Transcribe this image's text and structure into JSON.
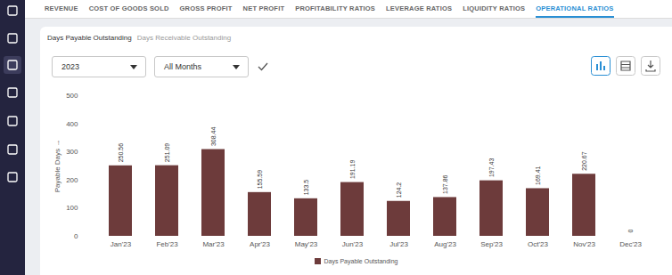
{
  "page": {
    "tabs": [
      {
        "label": "REVENUE"
      },
      {
        "label": "COST OF GOODS SOLD"
      },
      {
        "label": "GROSS PROFIT"
      },
      {
        "label": "NET PROFIT"
      },
      {
        "label": "PROFITABILITY RATIOS"
      },
      {
        "label": "LEVERAGE RATIOS"
      },
      {
        "label": "LIQUIDITY RATIOS"
      },
      {
        "label": "OPERATIONAL RATIOS",
        "active": true
      }
    ],
    "subtabs": [
      {
        "label": "Days Payable Outstanding",
        "active": true
      },
      {
        "label": "Days Receivable Outstanding"
      }
    ],
    "filters": [
      "2023",
      "All Months"
    ]
  },
  "chart_data": {
    "type": "bar",
    "categories": [
      "Jan'23",
      "Feb'23",
      "Mar'23",
      "Apr'23",
      "May'23",
      "Jun'23",
      "Jul'23",
      "Aug'23",
      "Sep'23",
      "Oct'23",
      "Nov'23",
      "Dec'23"
    ],
    "series": [
      {
        "name": "Days Payable Outstanding",
        "color": "#6d3b3b",
        "values": [
          250.56,
          251.09,
          308.44,
          155.59,
          133.5,
          191.19,
          124.2,
          137.86,
          197.43,
          169.41,
          220.67,
          0
        ]
      }
    ],
    "y_label": "Payable Days",
    "ylim": [
      0,
      500
    ],
    "yticks": [
      0,
      100,
      200,
      300,
      400,
      500
    ],
    "grid": false,
    "data_labels": true,
    "legend": "bottom"
  }
}
